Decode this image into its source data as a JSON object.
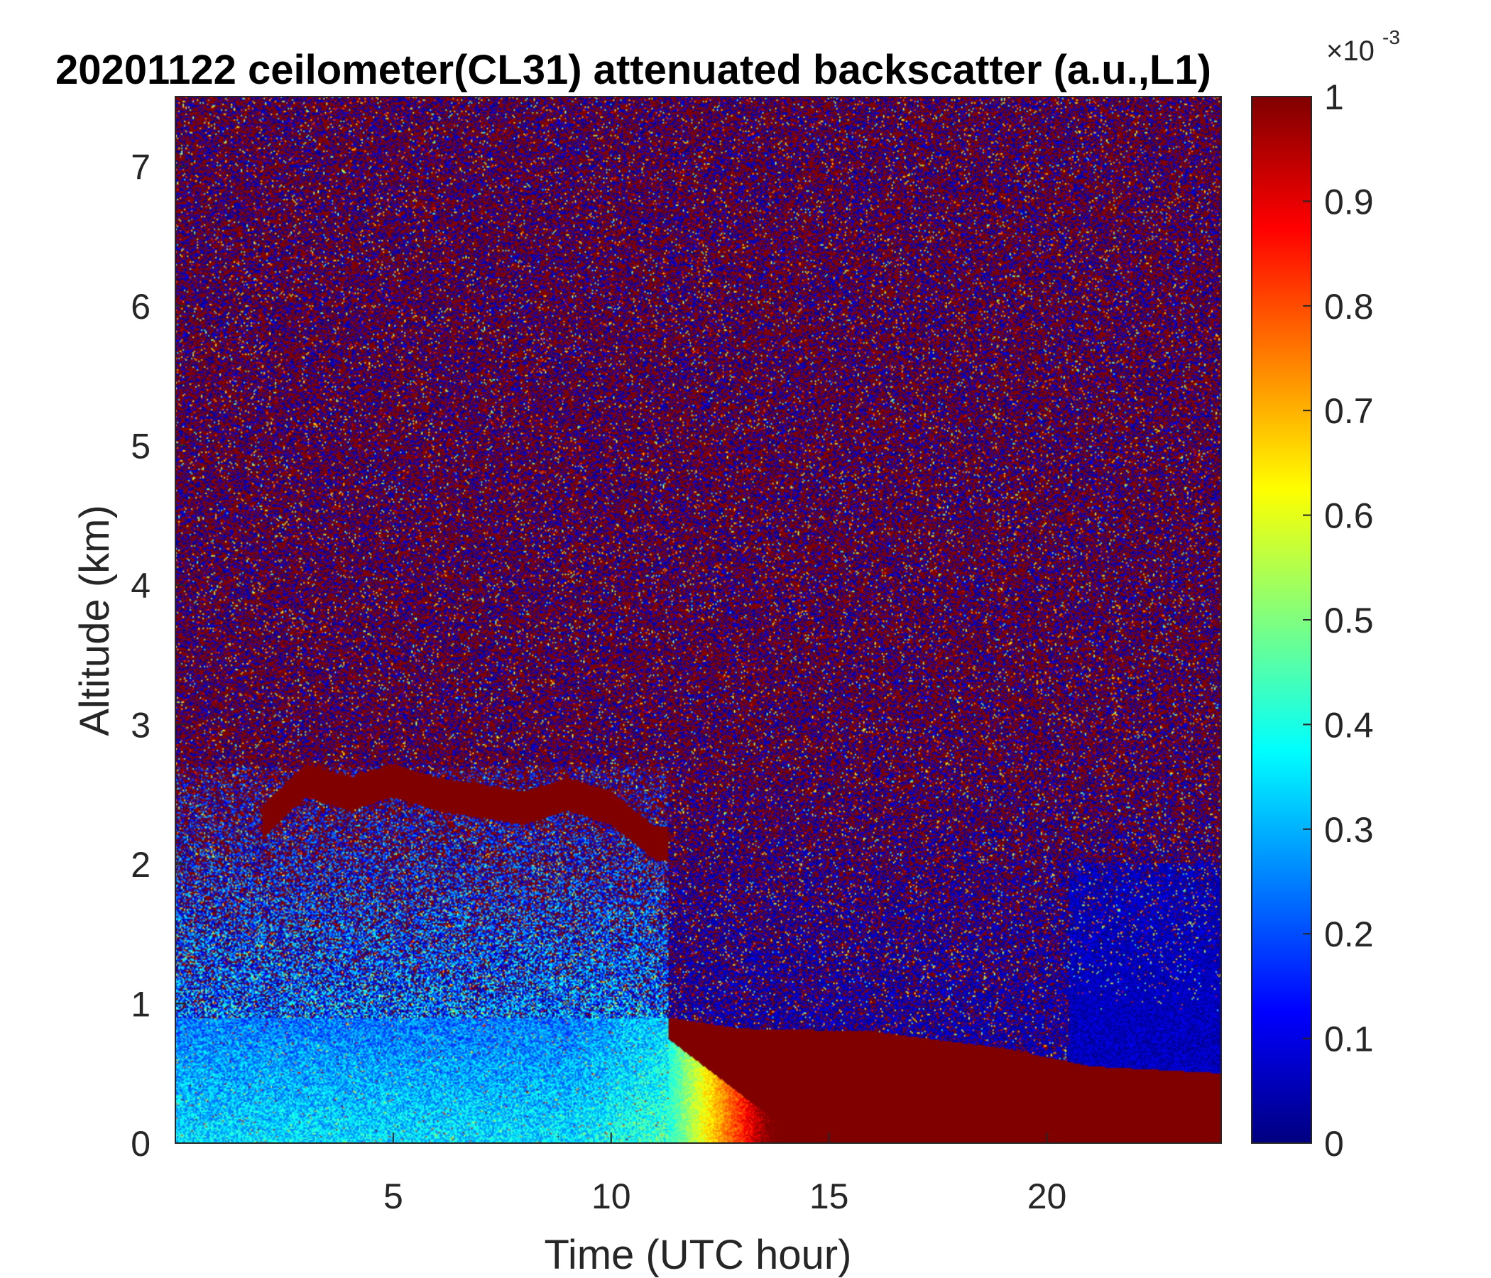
{
  "chart_data": {
    "type": "heatmap",
    "title": "20201122 ceilometer(CL31) attenuated backscatter (a.u.,L1)",
    "xlabel": "Time (UTC hour)",
    "ylabel": "Altitude (km)",
    "xlim": [
      0,
      24
    ],
    "ylim": [
      0,
      7.5
    ],
    "xticks": [
      5,
      10,
      15,
      20
    ],
    "yticks": [
      0,
      1,
      2,
      3,
      4,
      5,
      6,
      7
    ],
    "colorbar": {
      "colormap": "jet",
      "clim": [
        0,
        1
      ],
      "ticks": [
        0,
        0.1,
        0.2,
        0.3,
        0.4,
        0.5,
        0.6,
        0.7,
        0.8,
        0.9,
        1
      ],
      "exponent_label": "×10",
      "exponent_power": "-3"
    },
    "features": {
      "elevated_cloud_layer": {
        "time_range": [
          2,
          11.3
        ],
        "altitude_km_top": [
          [
            2.0,
            2.4
          ],
          [
            3.0,
            2.7
          ],
          [
            4.0,
            2.6
          ],
          [
            5.0,
            2.7
          ],
          [
            6.0,
            2.6
          ],
          [
            7.0,
            2.55
          ],
          [
            8.0,
            2.5
          ],
          [
            9.0,
            2.6
          ],
          [
            10.0,
            2.5
          ],
          [
            11.0,
            2.25
          ]
        ],
        "value": 1
      },
      "aerosol_layer_morning": {
        "time_range": [
          0,
          11.3
        ],
        "top_km": 0.9,
        "value": 0.35
      },
      "fog_layer_afternoon": {
        "top_km": [
          [
            11.3,
            0.9
          ],
          [
            13.0,
            0.82
          ],
          [
            16.0,
            0.8
          ],
          [
            19.0,
            0.68
          ],
          [
            21.0,
            0.55
          ],
          [
            24.0,
            0.5
          ]
        ],
        "value": 1
      },
      "background": "noise"
    }
  }
}
